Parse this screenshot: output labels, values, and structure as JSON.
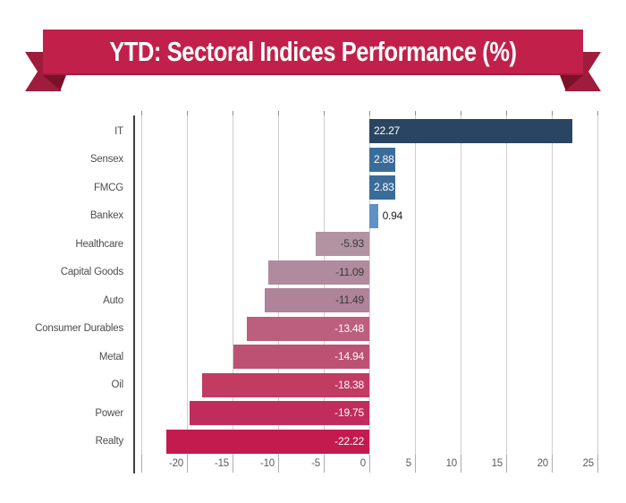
{
  "title": {
    "text": "YTD: Sectoral Indices Performance (%)"
  },
  "colors": {
    "ribbon_band": "#C1204A",
    "ribbon_tail": "#A01C3C",
    "ribbon_fold": "#7B1129",
    "title_text": "#FFFFFF",
    "grid_line": "#CDCDCD",
    "axis_line": "#3F3F3F",
    "tick_stub_top": "#8F8F8F",
    "tick_stub_bottom": "#ABABAB",
    "tick_text": "#595959",
    "category_text": "#4D4D4D"
  },
  "chart_data": {
    "type": "bar",
    "orientation": "horizontal",
    "title": "YTD: Sectoral Indices Performance (%)",
    "xlabel": "",
    "ylabel": "",
    "xlim": [
      -25,
      25
    ],
    "grid": true,
    "gridline_values": [
      -25,
      -20,
      -15,
      -10,
      -5,
      0,
      5,
      10,
      15,
      20,
      25
    ],
    "tick_values": [
      -20,
      -15,
      -10,
      -5,
      0,
      5,
      10,
      15,
      20,
      25
    ],
    "tick_labels": [
      "-20",
      "-15",
      "-10",
      "-5",
      "0",
      "5",
      "10",
      "15",
      "20",
      "25"
    ],
    "categories": [
      "IT",
      "Sensex",
      "FMCG",
      "Bankex",
      "Healthcare",
      "Capital Goods",
      "Auto",
      "Consumer Durables",
      "Metal",
      "Oil",
      "Power",
      "Realty"
    ],
    "values": [
      22.27,
      2.88,
      2.83,
      0.94,
      -5.93,
      -11.09,
      -11.49,
      -13.48,
      -14.94,
      -18.38,
      -19.75,
      -22.22
    ],
    "value_labels": [
      "22.27",
      "2.88",
      "2.83",
      "0.94",
      "-5.93",
      "-11.09",
      "-11.49",
      "-13.48",
      "-14.94",
      "-18.38",
      "-19.75",
      "-22.22"
    ],
    "bar_colors": [
      "#294562",
      "#3A6C9A",
      "#3A6C9A",
      "#5E92C4",
      "#B293A1",
      "#B08A9D",
      "#AF8399",
      "#BC5F7F",
      "#BC5174",
      "#C13B63",
      "#C12D5A",
      "#C41B4F"
    ],
    "value_label_colors": [
      "#FFFFFF",
      "#FFFFFF",
      "#FFFFFF",
      "#1E1E1E",
      "#3A3A3A",
      "#3A3A3A",
      "#3A3A3A",
      "#FFFFFF",
      "#FFFFFF",
      "#FFFFFF",
      "#FFFFFF",
      "#FFFFFF"
    ],
    "value_label_placement": [
      "inside",
      "inside",
      "inside",
      "outside",
      "inside",
      "inside",
      "inside",
      "inside",
      "inside",
      "inside",
      "inside",
      "inside"
    ]
  }
}
